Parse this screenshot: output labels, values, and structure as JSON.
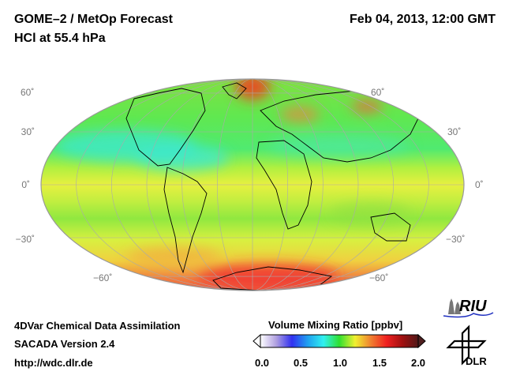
{
  "header": {
    "title_line1": "GOME–2 / MetOp Forecast",
    "title_line2": "HCl at 55.4 hPa",
    "datetime": "Feb 04, 2013, 12:00 GMT"
  },
  "map": {
    "projection": "ellipse (global)",
    "lat_labels_left": [
      "60˚",
      "30˚",
      "0˚",
      "−30˚",
      "−60˚"
    ],
    "lat_labels_right": [
      "60˚",
      "30˚",
      "0˚",
      "−30˚",
      "−60˚"
    ]
  },
  "colorbar": {
    "title": "Volume Mixing Ratio [ppbv]",
    "ticks": [
      "0.0",
      "0.5",
      "1.0",
      "1.5",
      "2.0"
    ],
    "range": [
      0.0,
      2.0
    ],
    "colors": [
      "#ffffff",
      "#b0a0e0",
      "#3030f0",
      "#20a0f0",
      "#30f0f0",
      "#30e030",
      "#f0f030",
      "#f08030",
      "#f02020",
      "#a01010",
      "#501818"
    ]
  },
  "footer": {
    "line1": "4DVar Chemical Data Assimilation",
    "line2": "SACADA Version 2.4",
    "line3": "http://wdc.dlr.de"
  },
  "logos": {
    "riu": "RIU",
    "dlr": "DLR"
  }
}
